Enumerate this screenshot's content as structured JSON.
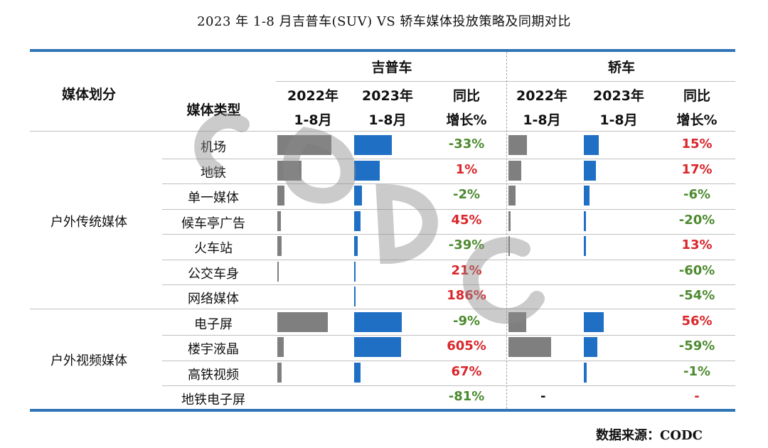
{
  "title": "2023 年 1-8 月吉普车(SUV) VS 轿车媒体投放策略及同期对比",
  "source": "数据来源：CODC",
  "watermark": "CODC",
  "colors": {
    "rule": "#2f75b5",
    "bar2022": "#7f7f7f",
    "bar2023": "#1f6fc5",
    "positive": "#d9262b",
    "negative": "#4d8a2f"
  },
  "header": {
    "media_division": "媒体划分",
    "media_type": "媒体类型",
    "groups": [
      "吉普车",
      "轿车"
    ],
    "col_year_2022": "2022年",
    "col_year_2023": "2023年",
    "col_period": "1-8月",
    "col_yoy_1": "同比",
    "col_yoy_2": "增长%"
  },
  "categories_groups": [
    {
      "name": "户外传统媒体",
      "rows": 7
    },
    {
      "name": "户外视频媒体",
      "rows": 4
    }
  ],
  "chart_data": {
    "type": "table",
    "rows": [
      "机场",
      "地铁",
      "单一媒体",
      "候车亭广告",
      "火车站",
      "公交车身",
      "网络媒体",
      "电子屏",
      "楼宇液晶",
      "高铁视频",
      "地铁电子屏"
    ],
    "suv": {
      "bar_2022": [
        0.95,
        0.42,
        0.13,
        0.06,
        0.08,
        0.02,
        0.0,
        0.89,
        0.11,
        0.07,
        0.0
      ],
      "bar_2023": [
        0.79,
        0.53,
        0.17,
        0.14,
        0.07,
        0.03,
        0.02,
        1.0,
        0.98,
        0.14,
        0.0
      ],
      "yoy": [
        "-33%",
        "1%",
        "-2%",
        "45%",
        "-39%",
        "21%",
        "186%",
        "-9%",
        "605%",
        "67%",
        "-81%"
      ]
    },
    "sedan": {
      "bar_2022": [
        0.43,
        0.3,
        0.16,
        0.05,
        0.04,
        0.0,
        0.0,
        0.41,
        1.0,
        0.0,
        0.0
      ],
      "bar_2023": [
        0.55,
        0.45,
        0.22,
        0.07,
        0.08,
        0.0,
        0.0,
        0.73,
        0.49,
        0.1,
        0.0
      ],
      "yoy": [
        "15%",
        "17%",
        "-6%",
        "-20%",
        "13%",
        "-60%",
        "-54%",
        "56%",
        "-59%",
        "-1%",
        "-"
      ],
      "placeholder_2022": [
        "",
        "",
        "",
        "",
        "",
        "",
        "",
        "",
        "",
        "",
        "-"
      ]
    }
  }
}
